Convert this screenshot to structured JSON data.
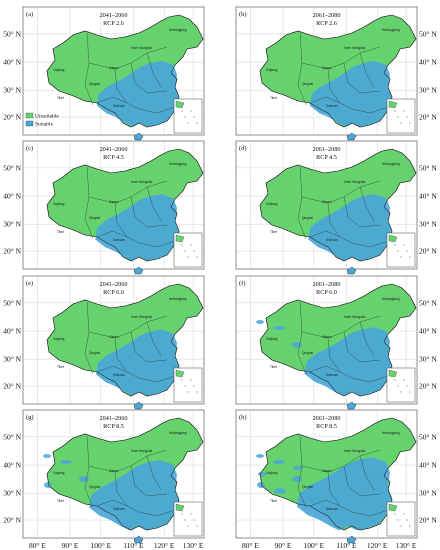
{
  "colors": {
    "unsuitable": "#66d26e",
    "suitable": "#4aa6d8",
    "border": "#2a2a2a",
    "grid": "#c8c8c8",
    "frame": "#444444"
  },
  "axes": {
    "x_ticks": [
      "80° E",
      "90° E",
      "100° E",
      "110° E",
      "120° E",
      "130° E"
    ],
    "y_ticks": [
      "50° N",
      "40° N",
      "30° N",
      "20° N"
    ]
  },
  "legend": {
    "unsuitable": "Unsuitable",
    "suitable": "Suitable"
  },
  "province_labels": [
    "Xinjiang",
    "Tibet",
    "Qinghai",
    "Gansu",
    "Inner Mongolia",
    "Heilongjiang",
    "Sichuan"
  ],
  "panels": [
    {
      "label": "(a)",
      "period": "2041–2060",
      "scenario": "RCP 2.6",
      "suitable_extent": 0.45
    },
    {
      "label": "(b)",
      "period": "2061–2080",
      "scenario": "RCP 2.6",
      "suitable_extent": 0.45
    },
    {
      "label": "(c)",
      "period": "2041–2060",
      "scenario": "RCP 4.5",
      "suitable_extent": 0.47
    },
    {
      "label": "(d)",
      "period": "2061–2080",
      "scenario": "RCP 4.5",
      "suitable_extent": 0.47
    },
    {
      "label": "(e)",
      "period": "2041–2060",
      "scenario": "RCP 6.0",
      "suitable_extent": 0.46
    },
    {
      "label": "(f)",
      "period": "2061–2080",
      "scenario": "RCP 6.0",
      "suitable_extent": 0.52
    },
    {
      "label": "(g)",
      "period": "2041–2060",
      "scenario": "RCP 8.5",
      "suitable_extent": 0.55
    },
    {
      "label": "(h)",
      "period": "2061–2080",
      "scenario": "RCP 8.5",
      "suitable_extent": 0.62
    }
  ]
}
